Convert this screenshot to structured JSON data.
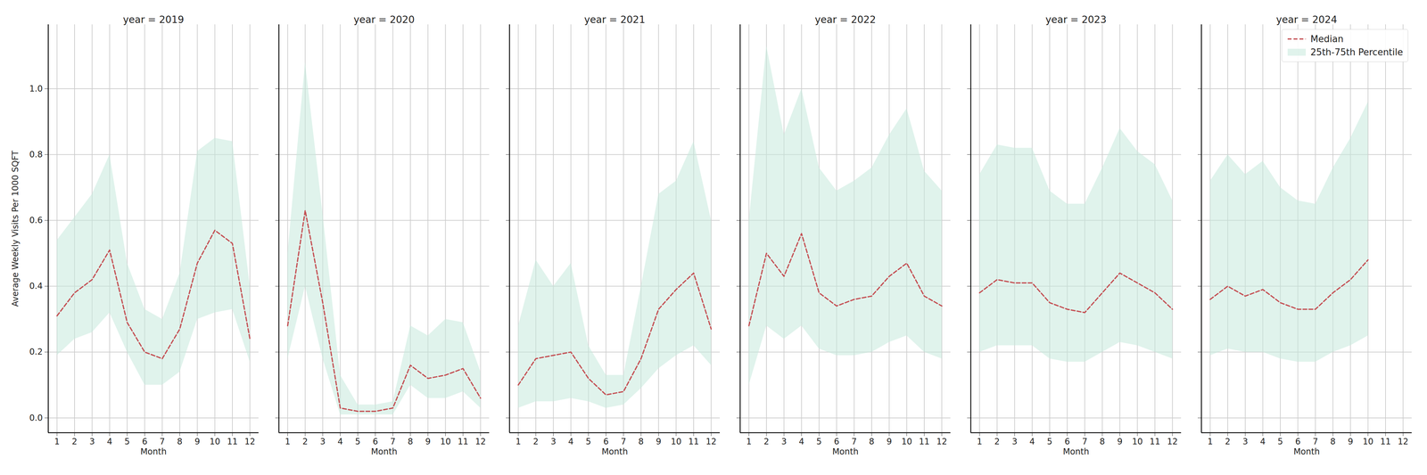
{
  "chart_data": [
    {
      "type": "line",
      "title": "year = 2019",
      "xlabel": "Month",
      "ylabel": "Average Weekly Visits Per 1000 SQFT",
      "x": [
        1,
        2,
        3,
        4,
        5,
        6,
        7,
        8,
        9,
        10,
        11,
        12
      ],
      "series": [
        {
          "name": "25th-75th Percentile",
          "type": "area",
          "color": "#c6e9dd",
          "lower": [
            0.19,
            0.24,
            0.26,
            0.32,
            0.2,
            0.1,
            0.1,
            0.14,
            0.3,
            0.32,
            0.33,
            0.17
          ],
          "upper": [
            0.54,
            0.61,
            0.68,
            0.8,
            0.47,
            0.33,
            0.3,
            0.44,
            0.81,
            0.85,
            0.84,
            0.4
          ]
        },
        {
          "name": "Median",
          "type": "line",
          "color": "#c44e52",
          "line_style": "dashed",
          "values": [
            0.31,
            0.38,
            0.42,
            0.51,
            0.29,
            0.2,
            0.18,
            0.27,
            0.47,
            0.57,
            0.53,
            0.24
          ]
        }
      ],
      "xlim": [
        0.5,
        12.5
      ],
      "xticks": [
        1,
        2,
        3,
        4,
        5,
        6,
        7,
        8,
        9,
        10,
        11,
        12
      ],
      "ylim": [
        -0.045,
        1.195
      ],
      "yticks": [
        {
          "value": 0,
          "label": "0.0"
        },
        {
          "value": 0.2,
          "label": "0.2"
        },
        {
          "value": 0.4,
          "label": "0.4"
        },
        {
          "value": 0.6,
          "label": "0.6"
        },
        {
          "value": 0.8,
          "label": "0.8"
        },
        {
          "value": 1,
          "label": "1.0"
        }
      ],
      "grid": true
    },
    {
      "type": "line",
      "title": "year = 2020",
      "xlabel": "Month",
      "x": [
        1,
        2,
        3,
        4,
        5,
        6,
        7,
        8,
        9,
        10,
        11,
        12
      ],
      "series": [
        {
          "name": "25th-75th Percentile",
          "type": "area",
          "color": "#c6e9dd",
          "lower": [
            0.18,
            0.4,
            0.18,
            0.01,
            0.01,
            0.01,
            0.01,
            0.1,
            0.06,
            0.06,
            0.08,
            0.03
          ],
          "upper": [
            0.5,
            1.08,
            0.62,
            0.13,
            0.04,
            0.04,
            0.05,
            0.28,
            0.25,
            0.3,
            0.29,
            0.14
          ]
        },
        {
          "name": "Median",
          "type": "line",
          "color": "#c44e52",
          "line_style": "dashed",
          "values": [
            0.28,
            0.63,
            0.35,
            0.03,
            0.02,
            0.02,
            0.03,
            0.16,
            0.12,
            0.13,
            0.15,
            0.06
          ]
        }
      ],
      "xlim": [
        0.5,
        12.5
      ],
      "xticks": [
        1,
        2,
        3,
        4,
        5,
        6,
        7,
        8,
        9,
        10,
        11,
        12
      ],
      "ylim": [
        -0.045,
        1.195
      ],
      "yticks": [
        {
          "value": 0,
          "label": "0.0"
        },
        {
          "value": 0.2,
          "label": "0.2"
        },
        {
          "value": 0.4,
          "label": "0.4"
        },
        {
          "value": 0.6,
          "label": "0.6"
        },
        {
          "value": 0.8,
          "label": "0.8"
        },
        {
          "value": 1,
          "label": "1.0"
        }
      ],
      "grid": true,
      "tick_labels": "x"
    },
    {
      "type": "line",
      "title": "year = 2021",
      "xlabel": "Month",
      "x": [
        1,
        2,
        3,
        4,
        5,
        6,
        7,
        8,
        9,
        10,
        11,
        12
      ],
      "series": [
        {
          "name": "25th-75th Percentile",
          "type": "area",
          "color": "#c6e9dd",
          "lower": [
            0.03,
            0.05,
            0.05,
            0.06,
            0.05,
            0.03,
            0.04,
            0.09,
            0.15,
            0.19,
            0.22,
            0.16
          ],
          "upper": [
            0.28,
            0.48,
            0.4,
            0.47,
            0.22,
            0.13,
            0.13,
            0.4,
            0.68,
            0.72,
            0.84,
            0.6
          ]
        },
        {
          "name": "Median",
          "type": "line",
          "color": "#c44e52",
          "line_style": "dashed",
          "values": [
            0.1,
            0.18,
            0.19,
            0.2,
            0.12,
            0.07,
            0.08,
            0.18,
            0.33,
            0.39,
            0.44,
            0.27
          ]
        }
      ],
      "xlim": [
        0.5,
        12.5
      ],
      "xticks": [
        1,
        2,
        3,
        4,
        5,
        6,
        7,
        8,
        9,
        10,
        11,
        12
      ],
      "ylim": [
        -0.045,
        1.195
      ],
      "yticks": [
        {
          "value": 0,
          "label": "0.0"
        },
        {
          "value": 0.2,
          "label": "0.2"
        },
        {
          "value": 0.4,
          "label": "0.4"
        },
        {
          "value": 0.6,
          "label": "0.6"
        },
        {
          "value": 0.8,
          "label": "0.8"
        },
        {
          "value": 1,
          "label": "1.0"
        }
      ],
      "grid": true,
      "tick_labels": "x"
    },
    {
      "type": "line",
      "title": "year = 2022",
      "xlabel": "Month",
      "x": [
        1,
        2,
        3,
        4,
        5,
        6,
        7,
        8,
        9,
        10,
        11,
        12
      ],
      "series": [
        {
          "name": "25th-75th Percentile",
          "type": "area",
          "color": "#c6e9dd",
          "lower": [
            0.1,
            0.28,
            0.24,
            0.28,
            0.21,
            0.19,
            0.19,
            0.2,
            0.23,
            0.25,
            0.2,
            0.18
          ],
          "upper": [
            0.6,
            1.13,
            0.86,
            1.0,
            0.76,
            0.69,
            0.72,
            0.76,
            0.86,
            0.94,
            0.75,
            0.69
          ]
        },
        {
          "name": "Median",
          "type": "line",
          "color": "#c44e52",
          "line_style": "dashed",
          "values": [
            0.28,
            0.5,
            0.43,
            0.56,
            0.38,
            0.34,
            0.36,
            0.37,
            0.43,
            0.47,
            0.37,
            0.34
          ]
        }
      ],
      "xlim": [
        0.5,
        12.5
      ],
      "xticks": [
        1,
        2,
        3,
        4,
        5,
        6,
        7,
        8,
        9,
        10,
        11,
        12
      ],
      "ylim": [
        -0.045,
        1.195
      ],
      "yticks": [
        {
          "value": 0,
          "label": "0.0"
        },
        {
          "value": 0.2,
          "label": "0.2"
        },
        {
          "value": 0.4,
          "label": "0.4"
        },
        {
          "value": 0.6,
          "label": "0.6"
        },
        {
          "value": 0.8,
          "label": "0.8"
        },
        {
          "value": 1,
          "label": "1.0"
        }
      ],
      "grid": true,
      "tick_labels": "x"
    },
    {
      "type": "line",
      "title": "year = 2023",
      "xlabel": "Month",
      "x": [
        1,
        2,
        3,
        4,
        5,
        6,
        7,
        8,
        9,
        10,
        11,
        12
      ],
      "series": [
        {
          "name": "25th-75th Percentile",
          "type": "area",
          "color": "#c6e9dd",
          "lower": [
            0.2,
            0.22,
            0.22,
            0.22,
            0.18,
            0.17,
            0.17,
            0.2,
            0.23,
            0.22,
            0.2,
            0.18
          ],
          "upper": [
            0.74,
            0.83,
            0.82,
            0.82,
            0.69,
            0.65,
            0.65,
            0.76,
            0.88,
            0.81,
            0.77,
            0.66
          ]
        },
        {
          "name": "Median",
          "type": "line",
          "color": "#c44e52",
          "line_style": "dashed",
          "values": [
            0.38,
            0.42,
            0.41,
            0.41,
            0.35,
            0.33,
            0.32,
            0.38,
            0.44,
            0.41,
            0.38,
            0.33
          ]
        }
      ],
      "xlim": [
        0.5,
        12.5
      ],
      "xticks": [
        1,
        2,
        3,
        4,
        5,
        6,
        7,
        8,
        9,
        10,
        11,
        12
      ],
      "ylim": [
        -0.045,
        1.195
      ],
      "yticks": [
        {
          "value": 0,
          "label": "0.0"
        },
        {
          "value": 0.2,
          "label": "0.2"
        },
        {
          "value": 0.4,
          "label": "0.4"
        },
        {
          "value": 0.6,
          "label": "0.6"
        },
        {
          "value": 0.8,
          "label": "0.8"
        },
        {
          "value": 1,
          "label": "1.0"
        }
      ],
      "grid": true,
      "tick_labels": "x"
    },
    {
      "type": "line",
      "title": "year = 2024",
      "xlabel": "Month",
      "x": [
        1,
        2,
        3,
        4,
        5,
        6,
        7,
        8,
        9,
        10,
        11,
        12
      ],
      "series": [
        {
          "name": "25th-75th Percentile",
          "type": "area",
          "color": "#c6e9dd",
          "lower": [
            0.19,
            0.21,
            0.2,
            0.2,
            0.18,
            0.17,
            0.17,
            0.2,
            0.22,
            0.25,
            null,
            null
          ],
          "upper": [
            0.72,
            0.8,
            0.74,
            0.78,
            0.7,
            0.66,
            0.65,
            0.76,
            0.85,
            0.96,
            null,
            null
          ]
        },
        {
          "name": "Median",
          "type": "line",
          "color": "#c44e52",
          "line_style": "dashed",
          "values": [
            0.36,
            0.4,
            0.37,
            0.39,
            0.35,
            0.33,
            0.33,
            0.38,
            0.42,
            0.48,
            null,
            null
          ]
        }
      ],
      "xlim": [
        0.5,
        12.5
      ],
      "xticks": [
        1,
        2,
        3,
        4,
        5,
        6,
        7,
        8,
        9,
        10,
        11,
        12
      ],
      "ylim": [
        -0.045,
        1.195
      ],
      "yticks": [
        {
          "value": 0,
          "label": "0.0"
        },
        {
          "value": 0.2,
          "label": "0.2"
        },
        {
          "value": 0.4,
          "label": "0.4"
        },
        {
          "value": 0.6,
          "label": "0.6"
        },
        {
          "value": 0.8,
          "label": "0.8"
        },
        {
          "value": 1,
          "label": "1.0"
        }
      ],
      "grid": true,
      "tick_labels": "x",
      "legend": "upper right"
    }
  ]
}
